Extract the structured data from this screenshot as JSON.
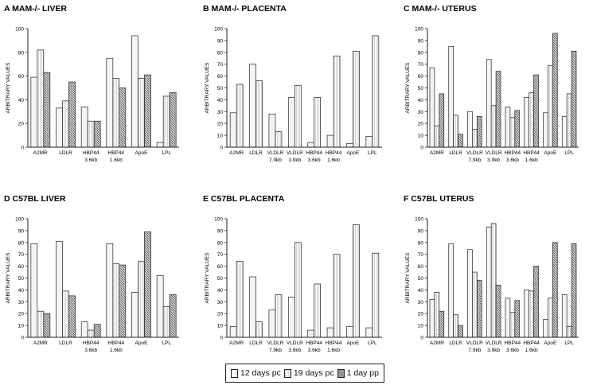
{
  "legend": [
    "12 days pc",
    "19 days pc",
    "1 day pp"
  ],
  "chart_data": [
    {
      "type": "bar",
      "title": "A  MAM-/- LIVER",
      "ylabel": "ARBITRARY VALUES",
      "ylim": [
        0,
        100
      ],
      "yticks": [
        0,
        20,
        40,
        60,
        80,
        100
      ],
      "categories": [
        [
          "A2MR"
        ],
        [
          "LDLR"
        ],
        [
          "HBP44",
          "3.6kb"
        ],
        [
          "HBP44",
          "1.6kb"
        ],
        [
          "ApoE"
        ],
        [
          "LPL"
        ]
      ],
      "series": [
        {
          "name": "12 days pc",
          "values": [
            59,
            33,
            34,
            75,
            94,
            4
          ]
        },
        {
          "name": "19 days pc",
          "values": [
            82,
            39,
            22,
            58,
            58,
            43
          ]
        },
        {
          "name": "1 day pp",
          "values": [
            63,
            55,
            22,
            50,
            61,
            46
          ]
        }
      ]
    },
    {
      "type": "bar",
      "title": "B  MAM-/- PLACENTA",
      "ylabel": "ARBITRARY VALUES",
      "ylim": [
        0,
        100
      ],
      "yticks": [
        0,
        10,
        20,
        30,
        40,
        50,
        60,
        70,
        80,
        90,
        100
      ],
      "categories": [
        [
          "A2MR"
        ],
        [
          "LDLR"
        ],
        [
          "VLDLR",
          "7.9kb"
        ],
        [
          "VLDLR",
          "3.9kb"
        ],
        [
          "HBP44",
          "3.6kb"
        ],
        [
          "HBP44",
          "1.6kb"
        ],
        [
          "ApoE"
        ],
        [
          "LPL"
        ]
      ],
      "series": [
        {
          "name": "12 days pc",
          "values": [
            29,
            70,
            28,
            42,
            4,
            10,
            3,
            9
          ]
        },
        {
          "name": "19 days pc",
          "values": [
            53,
            56,
            13,
            52,
            42,
            77,
            81,
            94
          ]
        }
      ]
    },
    {
      "type": "bar",
      "title": "C  MAM-/- UTERUS",
      "ylabel": "ARBITRARY VALUES",
      "ylim": [
        0,
        100
      ],
      "yticks": [
        0,
        10,
        20,
        30,
        40,
        50,
        60,
        70,
        80,
        90,
        100
      ],
      "categories": [
        [
          "A2MR"
        ],
        [
          "LDLR"
        ],
        [
          "VLDLR",
          "7.9kb"
        ],
        [
          "VLDLR",
          "3.9kb"
        ],
        [
          "HBP44",
          "3.6kb"
        ],
        [
          "HBP44",
          "1.6kb"
        ],
        [
          "ApoE"
        ],
        [
          "LPL"
        ]
      ],
      "series": [
        {
          "name": "12 days pc",
          "values": [
            67,
            85,
            30,
            74,
            34,
            42,
            29,
            26
          ]
        },
        {
          "name": "19 days pc",
          "values": [
            18,
            27,
            15,
            35,
            25,
            46,
            69,
            45
          ]
        },
        {
          "name": "1 day pp",
          "values": [
            45,
            11,
            26,
            64,
            31,
            61,
            96,
            81
          ]
        }
      ]
    },
    {
      "type": "bar",
      "title": "D  C57BL LIVER",
      "ylabel": "ARBITRARY VALUES",
      "ylim": [
        0,
        100
      ],
      "yticks": [
        0,
        10,
        20,
        30,
        40,
        50,
        60,
        70,
        80,
        90,
        100
      ],
      "categories": [
        [
          "A2MR"
        ],
        [
          "LDLR"
        ],
        [
          "HBP44",
          "3.6kb"
        ],
        [
          "HBP44",
          "1.6kb"
        ],
        [
          "ApoE"
        ],
        [
          "LPL"
        ]
      ],
      "series": [
        {
          "name": "12 days pc",
          "values": [
            79,
            81,
            13,
            79,
            38,
            52
          ]
        },
        {
          "name": "19 days pc",
          "values": [
            22,
            39,
            6,
            62,
            64,
            26
          ]
        },
        {
          "name": "1 day pp",
          "values": [
            20,
            35,
            11,
            61,
            89,
            36
          ]
        }
      ]
    },
    {
      "type": "bar",
      "title": "E  C57BL PLACENTA",
      "ylabel": "ARBITRARY VALUES",
      "ylim": [
        0,
        100
      ],
      "yticks": [
        0,
        10,
        20,
        30,
        40,
        50,
        60,
        70,
        80,
        90,
        100
      ],
      "categories": [
        [
          "A2MR"
        ],
        [
          "LDLR"
        ],
        [
          "VLDLR",
          "7.9kb"
        ],
        [
          "VLDLR",
          "3.9kb"
        ],
        [
          "HBP44",
          "3.6kb"
        ],
        [
          "HBP44",
          "1.6kb"
        ],
        [
          "ApoE"
        ],
        [
          "LPL"
        ]
      ],
      "series": [
        {
          "name": "12 days pc",
          "values": [
            9,
            51,
            23,
            34,
            6,
            8,
            9,
            8
          ]
        },
        {
          "name": "19 days pc",
          "values": [
            64,
            13,
            36,
            80,
            45,
            70,
            95,
            71
          ]
        }
      ]
    },
    {
      "type": "bar",
      "title": "F  C57BL UTERUS",
      "ylabel": "ARBITRARY VALUES",
      "ylim": [
        0,
        100
      ],
      "yticks": [
        0,
        10,
        20,
        30,
        40,
        50,
        60,
        70,
        80,
        90,
        100
      ],
      "categories": [
        [
          "A2MR"
        ],
        [
          "LDLR"
        ],
        [
          "VLDLR",
          "7.9kb"
        ],
        [
          "VLDLR",
          "3.9kb"
        ],
        [
          "HBP44",
          "3.6kb"
        ],
        [
          "HBP44",
          "1.6kb"
        ],
        [
          "ApoE"
        ],
        [
          "LPL"
        ]
      ],
      "series": [
        {
          "name": "12 days pc",
          "values": [
            32,
            79,
            74,
            93,
            33,
            40,
            15,
            36
          ]
        },
        {
          "name": "19 days pc",
          "values": [
            38,
            19,
            55,
            96,
            21,
            39,
            33,
            9
          ]
        },
        {
          "name": "1 day pp",
          "values": [
            22,
            10,
            48,
            44,
            31,
            60,
            80,
            79
          ]
        }
      ]
    }
  ]
}
